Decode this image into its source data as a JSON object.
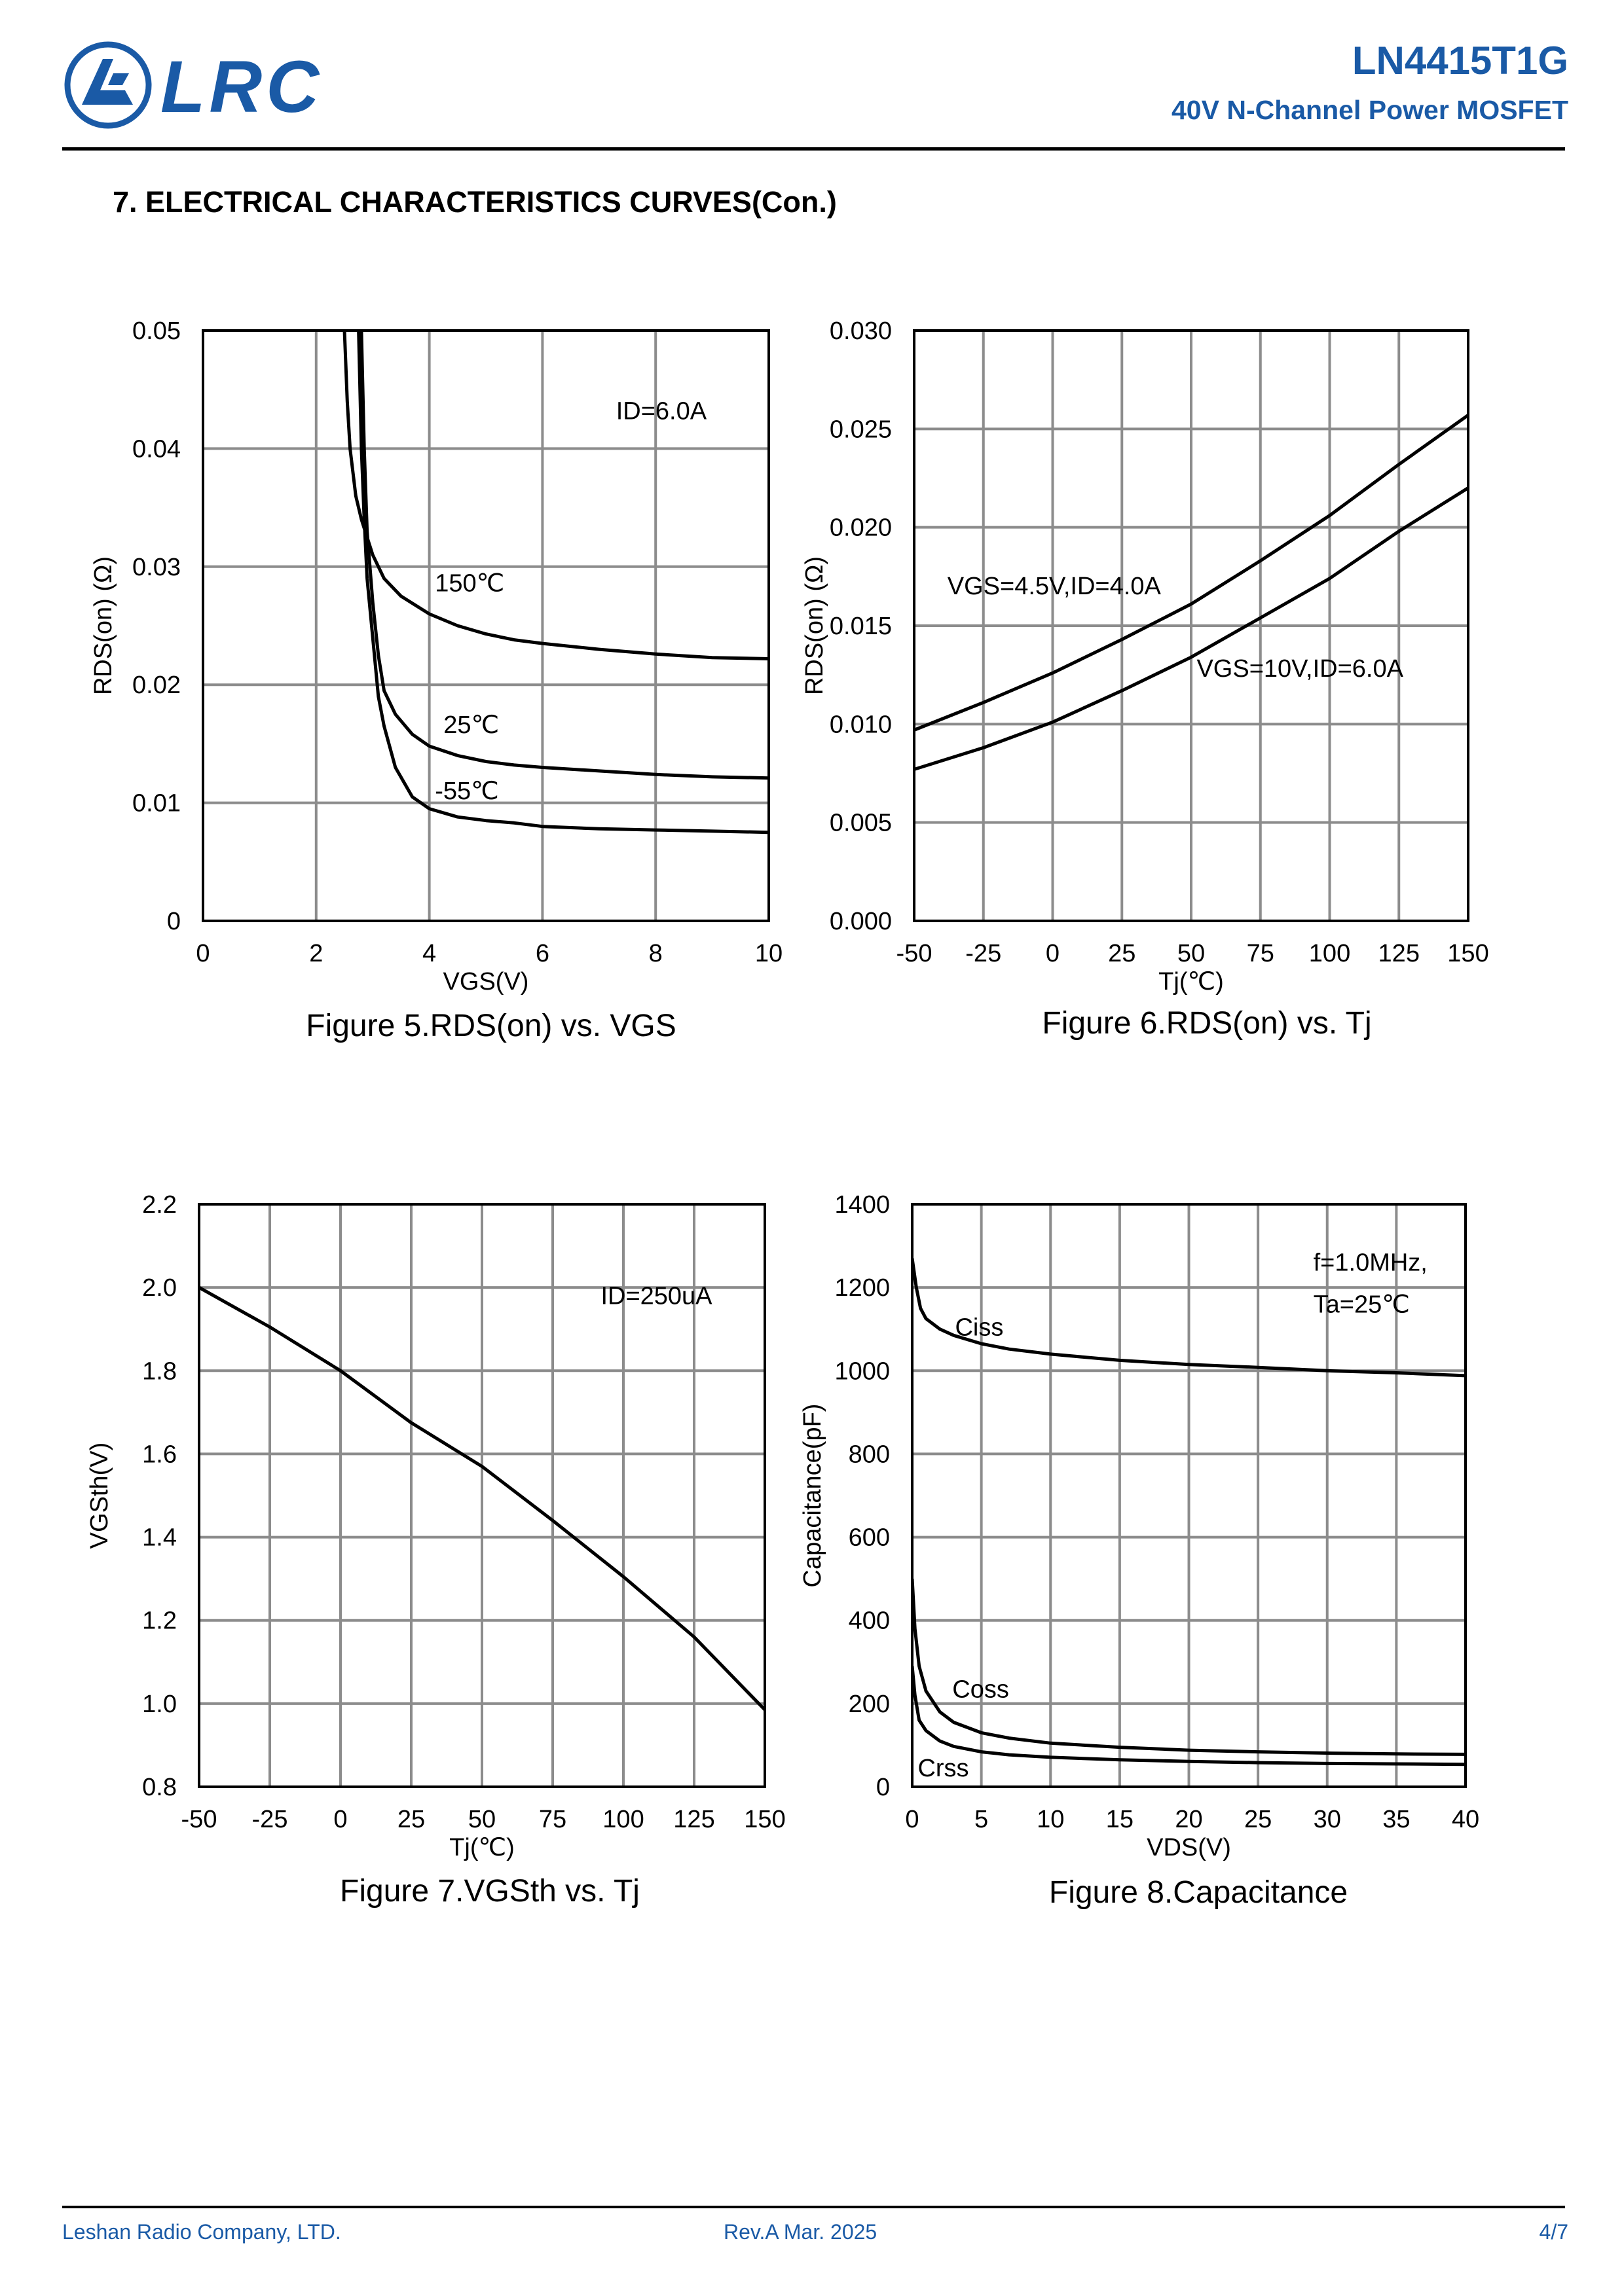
{
  "header": {
    "logo_text": "LRC",
    "part_number": "LN4415T1G",
    "description": "40V N-Channel Power MOSFET"
  },
  "section_title": "7. ELECTRICAL CHARACTERISTICS CURVES(Con.)",
  "colors": {
    "brand": "#1a5aa6",
    "grid": "#8c8c8c",
    "curve": "#000000"
  },
  "chart_data": [
    {
      "id": "fig5",
      "type": "line",
      "caption": "Figure 5.RDS(on) vs. VGS",
      "xlabel": "VGS(V)",
      "ylabel": "RDS(on) (Ω)",
      "xlim": [
        0,
        10
      ],
      "ylim": [
        0,
        0.05
      ],
      "xticks": [
        0,
        2,
        4,
        6,
        8,
        10
      ],
      "xtick_labels": [
        "0",
        "2",
        "4",
        "6",
        "8",
        "10"
      ],
      "yticks": [
        0,
        0.01,
        0.02,
        0.03,
        0.04,
        0.05
      ],
      "ytick_labels": [
        "0",
        "0.01",
        "0.02",
        "0.03",
        "0.04",
        "0.05"
      ],
      "grid": true,
      "annotations": [
        {
          "text": "ID=6.0A",
          "x": 7.3,
          "y": 0.0425
        }
      ],
      "series": [
        {
          "name": "150℃",
          "label_at": [
            4.1,
            0.0279
          ],
          "x": [
            2.5,
            2.55,
            2.6,
            2.7,
            2.8,
            3.0,
            3.2,
            3.5,
            4.0,
            4.5,
            5.0,
            5.5,
            6.0,
            7.0,
            8.0,
            9.0,
            10.0
          ],
          "y": [
            0.05,
            0.044,
            0.04,
            0.036,
            0.034,
            0.031,
            0.029,
            0.0275,
            0.026,
            0.025,
            0.0243,
            0.0238,
            0.0235,
            0.023,
            0.0226,
            0.0223,
            0.0222
          ]
        },
        {
          "name": "25℃",
          "label_at": [
            4.25,
            0.0159
          ],
          "x": [
            2.8,
            2.85,
            2.9,
            3.0,
            3.1,
            3.2,
            3.4,
            3.7,
            4.0,
            4.5,
            5.0,
            5.5,
            6.0,
            7.0,
            8.0,
            9.0,
            10.0
          ],
          "y": [
            0.05,
            0.04,
            0.033,
            0.027,
            0.0225,
            0.0195,
            0.0175,
            0.0158,
            0.0148,
            0.014,
            0.0135,
            0.0132,
            0.013,
            0.0127,
            0.0124,
            0.0122,
            0.0121
          ]
        },
        {
          "name": "-55℃",
          "label_at": [
            4.1,
            0.0103
          ],
          "x": [
            2.75,
            2.8,
            2.85,
            2.9,
            3.0,
            3.1,
            3.2,
            3.4,
            3.7,
            4.0,
            4.5,
            5.0,
            5.5,
            6.0,
            7.0,
            8.0,
            9.0,
            10.0
          ],
          "y": [
            0.05,
            0.04,
            0.034,
            0.029,
            0.024,
            0.019,
            0.0165,
            0.013,
            0.0105,
            0.0095,
            0.0088,
            0.0085,
            0.0083,
            0.008,
            0.0078,
            0.0077,
            0.0076,
            0.0075
          ]
        }
      ]
    },
    {
      "id": "fig6",
      "type": "line",
      "caption": "Figure 6.RDS(on) vs. Tj",
      "xlabel": "Tj(℃)",
      "ylabel": "RDS(on) (Ω)",
      "xlim": [
        -50,
        150
      ],
      "ylim": [
        0,
        0.03
      ],
      "xticks": [
        -50,
        -25,
        0,
        25,
        50,
        75,
        100,
        125,
        150
      ],
      "xtick_labels": [
        "-50",
        "-25",
        "0",
        "25",
        "50",
        "75",
        "100",
        "125",
        "150"
      ],
      "yticks": [
        0,
        0.005,
        0.01,
        0.015,
        0.02,
        0.025,
        0.03
      ],
      "ytick_labels": [
        "0.000",
        "0.005",
        "0.010",
        "0.015",
        "0.020",
        "0.025",
        "0.030"
      ],
      "grid": true,
      "series": [
        {
          "name": "VGS=4.5V,ID=4.0A",
          "label_at": [
            -38,
            0.0166
          ],
          "x": [
            -50,
            -25,
            0,
            25,
            50,
            75,
            100,
            125,
            150
          ],
          "y": [
            0.0097,
            0.0111,
            0.0126,
            0.0143,
            0.0161,
            0.0183,
            0.0206,
            0.0232,
            0.0257
          ]
        },
        {
          "name": "VGS=10V,ID=6.0A",
          "label_at": [
            52,
            0.0124
          ],
          "x": [
            -50,
            -25,
            0,
            25,
            50,
            75,
            100,
            125,
            150
          ],
          "y": [
            0.0077,
            0.0088,
            0.0101,
            0.0117,
            0.0134,
            0.0154,
            0.0174,
            0.0198,
            0.022
          ]
        }
      ]
    },
    {
      "id": "fig7",
      "type": "line",
      "caption": "Figure 7.VGSth vs. Tj",
      "xlabel": "Tj(℃)",
      "ylabel": "VGSth(V)",
      "xlim": [
        -50,
        150
      ],
      "ylim": [
        0.8,
        2.2
      ],
      "xticks": [
        -50,
        -25,
        0,
        25,
        50,
        75,
        100,
        125,
        150
      ],
      "xtick_labels": [
        "-50",
        "-25",
        "0",
        "25",
        "50",
        "75",
        "100",
        "125",
        "150"
      ],
      "yticks": [
        0.8,
        1.0,
        1.2,
        1.4,
        1.6,
        1.8,
        2.0,
        2.2
      ],
      "ytick_labels": [
        "0.8",
        "1.0",
        "1.2",
        "1.4",
        "1.6",
        "1.8",
        "2.0",
        "2.2"
      ],
      "grid": true,
      "annotations": [
        {
          "text": "ID=250uA",
          "x": 92,
          "y": 1.96
        }
      ],
      "series": [
        {
          "name": "",
          "x": [
            -50,
            -25,
            0,
            25,
            50,
            75,
            100,
            125,
            150
          ],
          "y": [
            2.0,
            1.905,
            1.8,
            1.675,
            1.57,
            1.44,
            1.305,
            1.16,
            0.985
          ]
        }
      ]
    },
    {
      "id": "fig8",
      "type": "line",
      "caption": "Figure 8.Capacitance",
      "xlabel": "VDS(V)",
      "ylabel": "Capacitance(pF)",
      "xlim": [
        0,
        40
      ],
      "ylim": [
        0,
        1400
      ],
      "xticks": [
        0,
        5,
        10,
        15,
        20,
        25,
        30,
        35,
        40
      ],
      "xtick_labels": [
        "0",
        "5",
        "10",
        "15",
        "20",
        "25",
        "30",
        "35",
        "40"
      ],
      "yticks": [
        0,
        200,
        400,
        600,
        800,
        1000,
        1200,
        1400
      ],
      "ytick_labels": [
        "0",
        "200",
        "400",
        "600",
        "800",
        "1000",
        "1200",
        "1400"
      ],
      "grid": true,
      "annotations": [
        {
          "text": "f=1.0MHz,",
          "x": 29,
          "y": 1240
        },
        {
          "text": "Ta=25℃",
          "x": 29,
          "y": 1140
        }
      ],
      "series": [
        {
          "name": "Ciss",
          "label_at": [
            3.1,
            1085
          ],
          "x": [
            0,
            0.3,
            0.6,
            1,
            2,
            3,
            5,
            7,
            10,
            15,
            20,
            25,
            30,
            35,
            40
          ],
          "y": [
            1270,
            1200,
            1150,
            1125,
            1100,
            1085,
            1065,
            1052,
            1040,
            1025,
            1015,
            1008,
            1000,
            995,
            988
          ]
        },
        {
          "name": "Coss",
          "label_at": [
            2.9,
            215
          ],
          "x": [
            0,
            0.2,
            0.5,
            1,
            2,
            3,
            5,
            7,
            10,
            15,
            20,
            25,
            30,
            35,
            40
          ],
          "y": [
            500,
            380,
            290,
            230,
            180,
            155,
            130,
            117,
            105,
            95,
            88,
            84,
            81,
            79,
            78
          ]
        },
        {
          "name": "Crss",
          "label_at": [
            0.4,
            25
          ],
          "x": [
            0,
            0.2,
            0.5,
            1,
            2,
            3,
            5,
            7,
            10,
            15,
            20,
            25,
            30,
            35,
            40
          ],
          "y": [
            290,
            220,
            160,
            135,
            110,
            97,
            84,
            77,
            71,
            65,
            61,
            58,
            56,
            55,
            54
          ]
        }
      ]
    }
  ],
  "footer": {
    "company": "Leshan Radio Company, LTD.",
    "revision": "Rev.A   Mar.  2025",
    "page": "4/7"
  }
}
